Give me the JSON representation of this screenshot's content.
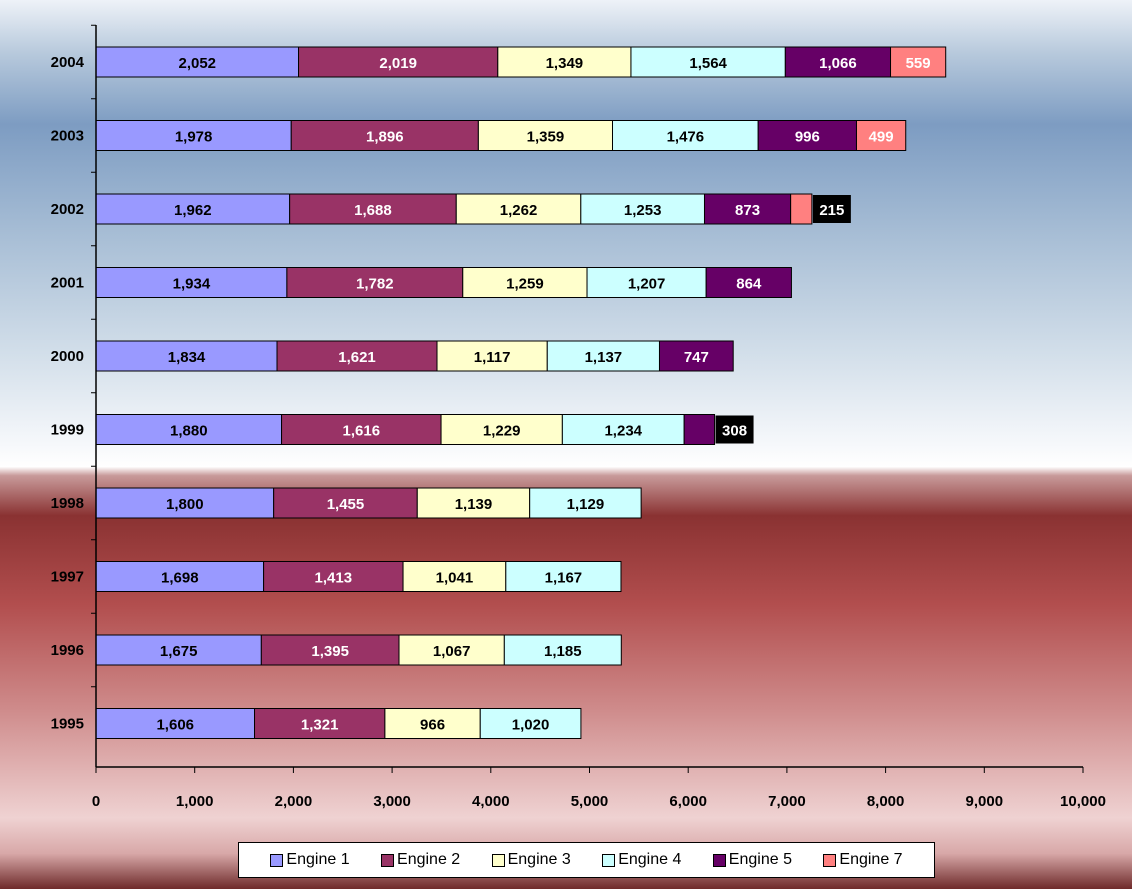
{
  "chart_data": {
    "type": "bar",
    "orientation": "horizontal",
    "stacked": true,
    "categories": [
      "2004",
      "2003",
      "2002",
      "2001",
      "2000",
      "1999",
      "1998",
      "1997",
      "1996",
      "1995"
    ],
    "series": [
      {
        "name": "Engine 1",
        "color": "#9999ff",
        "values": [
          2052,
          1978,
          1962,
          1934,
          1834,
          1880,
          1800,
          1698,
          1675,
          1606
        ],
        "labels": [
          "2,052",
          "1,978",
          "1,962",
          "1,934",
          "1,834",
          "1,880",
          "1,800",
          "1,698",
          "1,675",
          "1,606"
        ]
      },
      {
        "name": "Engine 2",
        "color": "#993366",
        "values": [
          2019,
          1896,
          1688,
          1782,
          1621,
          1616,
          1455,
          1413,
          1395,
          1321
        ],
        "labels": [
          "2,019",
          "1,896",
          "1,688",
          "1,782",
          "1,621",
          "1,616",
          "1,455",
          "1,413",
          "1,395",
          "1,321"
        ]
      },
      {
        "name": "Engine 3",
        "color": "#ffffcc",
        "values": [
          1349,
          1359,
          1262,
          1259,
          1117,
          1229,
          1139,
          1041,
          1067,
          966
        ],
        "labels": [
          "1,349",
          "1,359",
          "1,262",
          "1,259",
          "1,117",
          "1,229",
          "1,139",
          "1,041",
          "1,067",
          "966"
        ]
      },
      {
        "name": "Engine 4",
        "color": "#ccffff",
        "values": [
          1564,
          1476,
          1253,
          1207,
          1137,
          1234,
          1129,
          1167,
          1185,
          1020
        ],
        "labels": [
          "1,564",
          "1,476",
          "1,253",
          "1,207",
          "1,137",
          "1,234",
          "1,129",
          "1,167",
          "1,185",
          "1,020"
        ]
      },
      {
        "name": "Engine 5",
        "color": "#660066",
        "values": [
          1066,
          996,
          873,
          864,
          747,
          308,
          0,
          0,
          0,
          0
        ],
        "labels": [
          "1,066",
          "996",
          "873",
          "864",
          "747",
          "308",
          "",
          "",
          "",
          ""
        ]
      },
      {
        "name": "Engine 7",
        "color": "#ff8080",
        "values": [
          559,
          499,
          215,
          0,
          0,
          0,
          0,
          0,
          0,
          0
        ],
        "labels": [
          "559",
          "499",
          "215",
          "",
          "",
          "",
          "",
          "",
          "",
          ""
        ]
      }
    ],
    "xlim": [
      0,
      10000
    ],
    "xticks": [
      0,
      1000,
      2000,
      3000,
      4000,
      5000,
      6000,
      7000,
      8000,
      9000,
      10000
    ],
    "xtick_labels": [
      "0",
      "1,000",
      "2,000",
      "3,000",
      "4,000",
      "5,000",
      "6,000",
      "7,000",
      "8,000",
      "9,000",
      "10,000"
    ],
    "grid": false,
    "legend_position": "bottom"
  }
}
